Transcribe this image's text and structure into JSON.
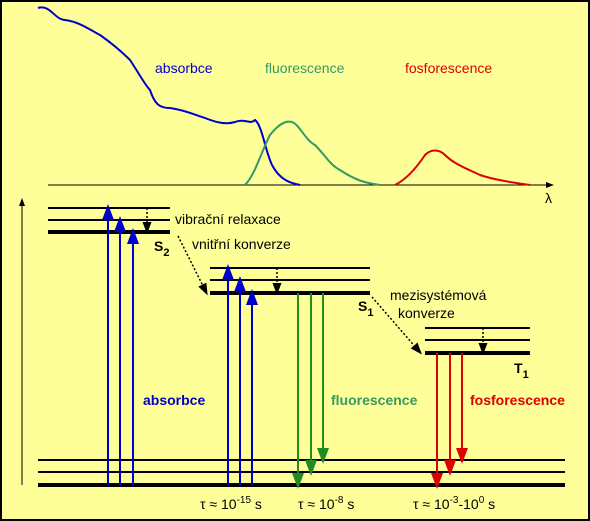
{
  "spectrum": {
    "labels": [
      "absorbce",
      "fluorescence",
      "fosforescence"
    ],
    "axis_label": "λ"
  },
  "states": [
    {
      "symbol": "S",
      "subscript": "2"
    },
    {
      "symbol": "S",
      "subscript": "1"
    },
    {
      "symbol": "T",
      "subscript": "1"
    }
  ],
  "processes": {
    "vibrational_relaxation": "vibrační relaxace",
    "internal_conversion": "vnitřní konverze",
    "intersystem_crossing": [
      "mezisystémová",
      "konverze"
    ]
  },
  "transitions": [
    "absorbce",
    "fluorescence",
    "fosforescence"
  ],
  "lifetimes": [
    [
      "τ ≈ 10",
      "-15",
      " s"
    ],
    [
      "τ ≈ 10",
      "-8",
      " s"
    ],
    [
      "τ ≈ 10",
      "-3",
      "-10",
      "0",
      " s"
    ]
  ]
}
